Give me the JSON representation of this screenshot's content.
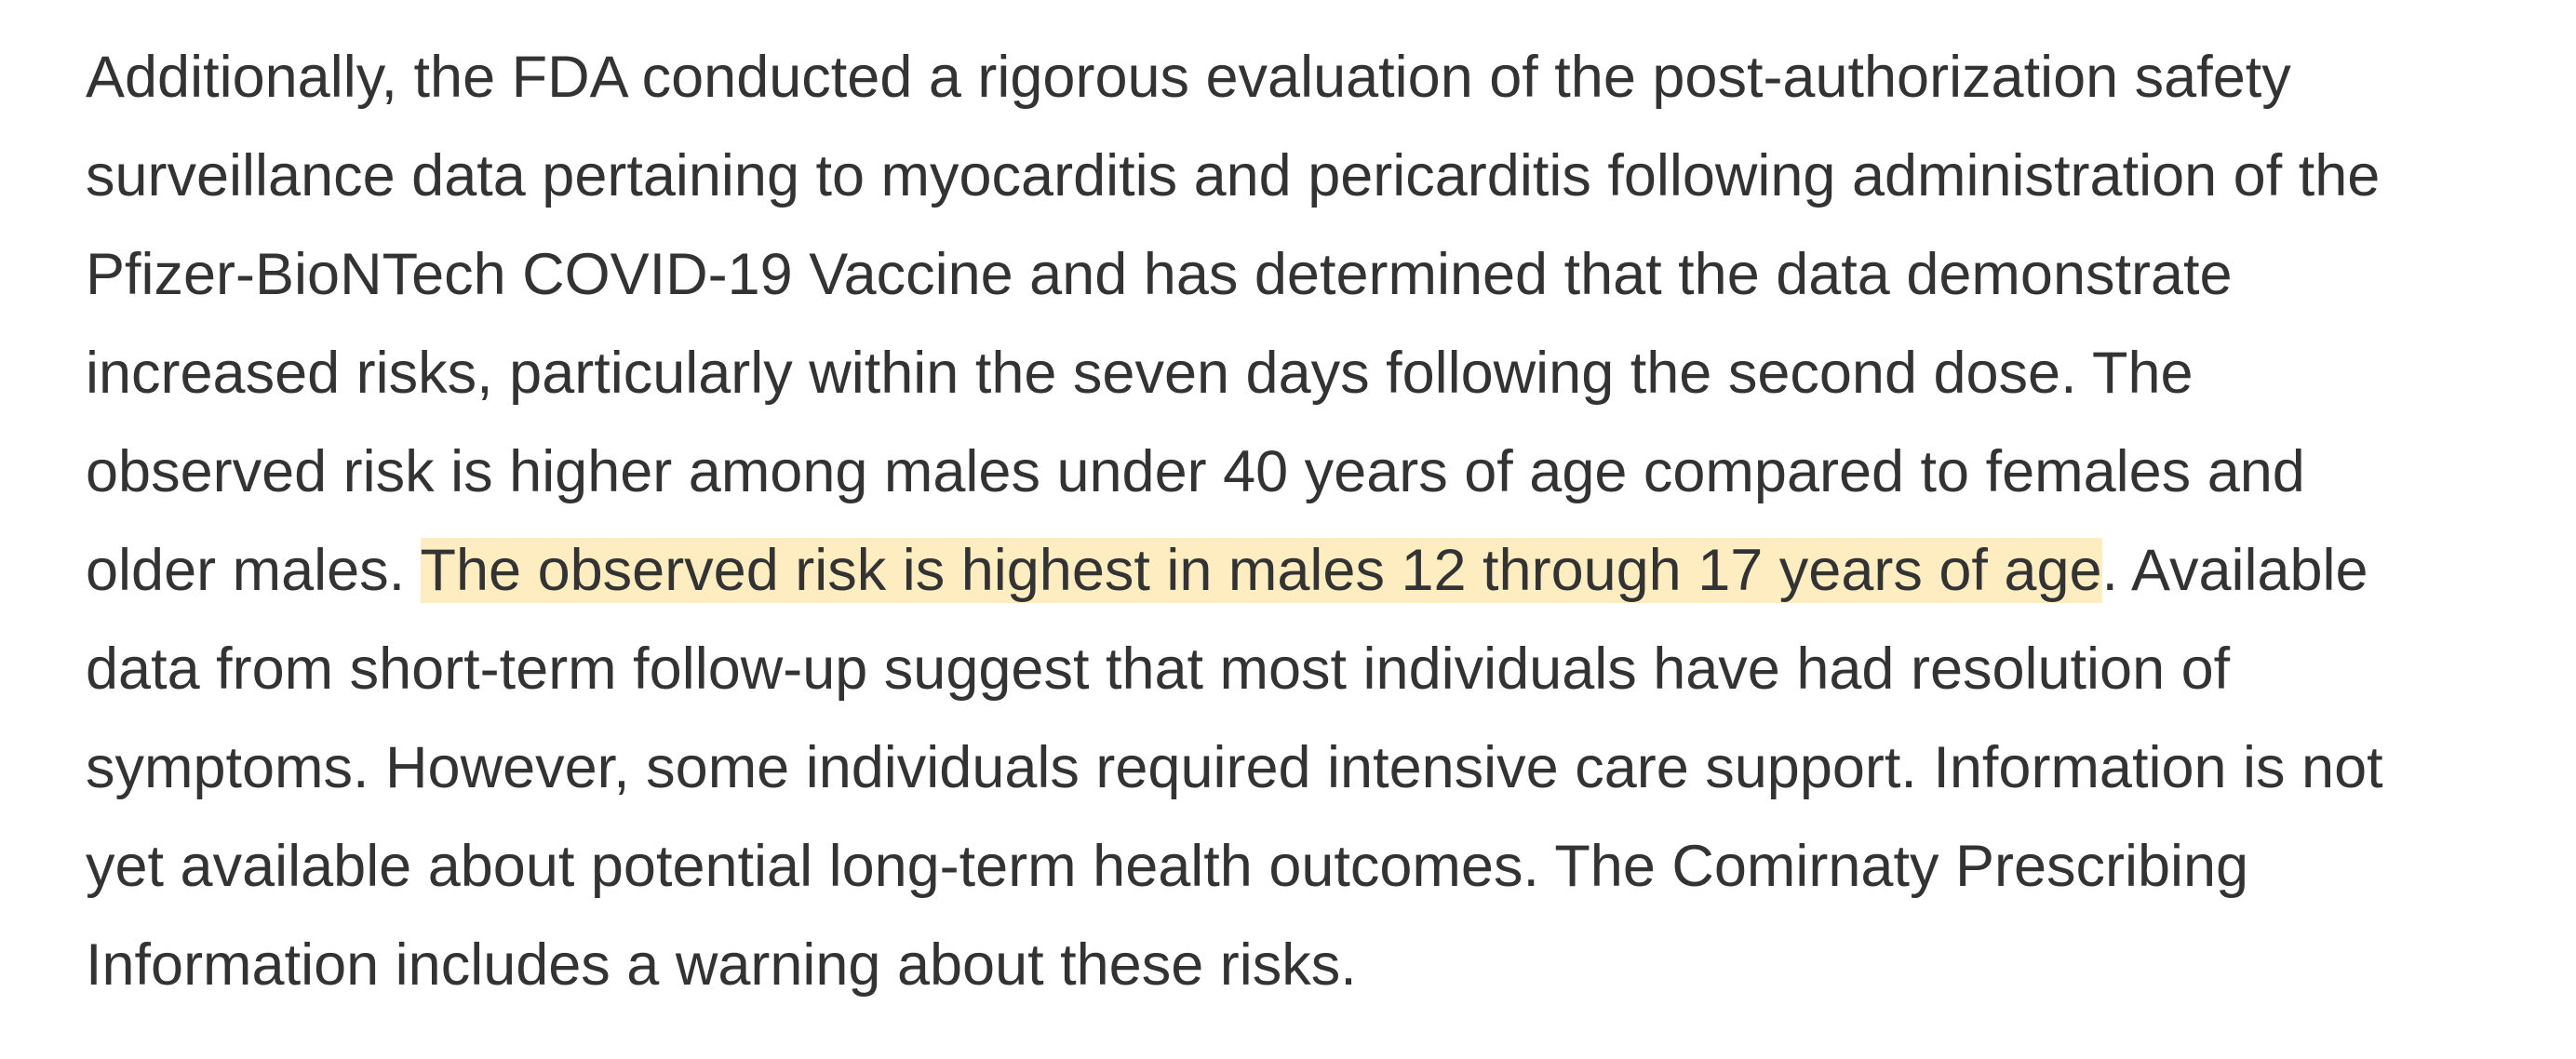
{
  "paragraph": {
    "lines": [
      "Additionally, the FDA conducted a rigorous evaluation of the post-authorization safety",
      "surveillance data pertaining to myocarditis and pericarditis following administration of the",
      "Pfizer-BioNTech COVID-19 Vaccine and has determined that the data demonstrate",
      "increased risks, particularly within the seven days following the second dose. The",
      "observed risk is higher among males under 40 years of age compared to females and",
      {
        "before": "older males. ",
        "highlight": "The observed risk is highest in males 12 through 17 years of age",
        "after": ". Available"
      },
      "data from short-term follow-up suggest that most individuals have had resolution of",
      "symptoms. However, some individuals required intensive care support. Information is not",
      "yet available about potential long-term health outcomes. The Comirnaty Prescribing",
      "Information includes a warning about these risks."
    ]
  }
}
